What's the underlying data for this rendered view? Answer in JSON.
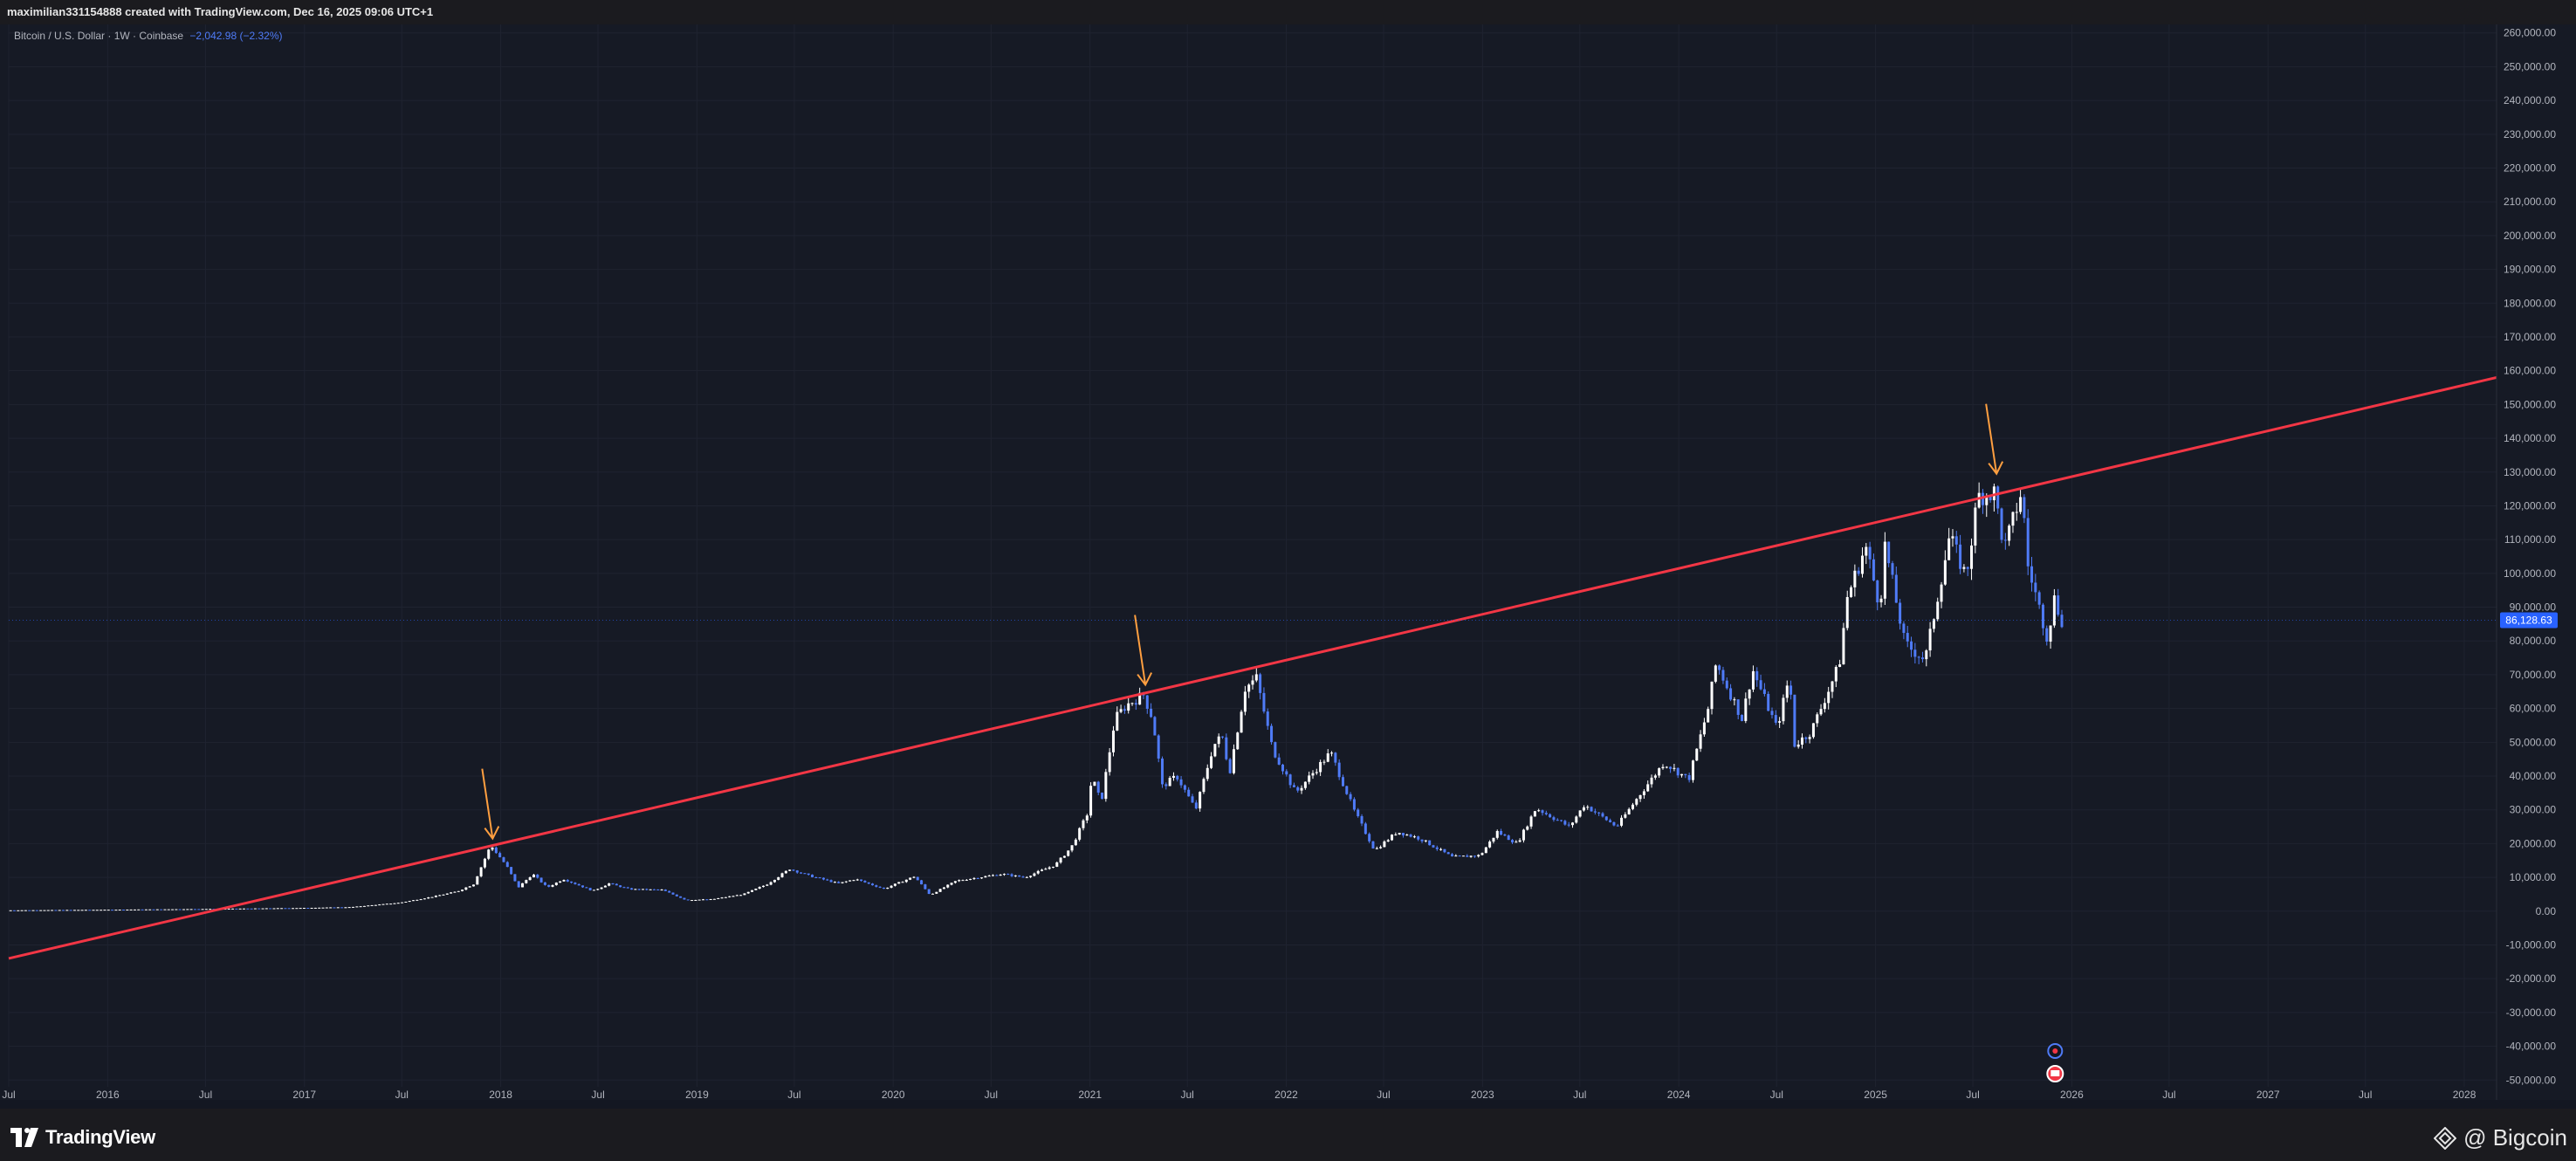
{
  "header": {
    "text": "maximilian331154888 created with TradingView.com, Dec 16, 2025 09:06 UTC+1"
  },
  "legend": {
    "symbol": "Bitcoin / U.S. Dollar · 1W · Coinbase",
    "change": "−2,042.98 (−2.32%)"
  },
  "footer": {
    "brand": "TradingView",
    "watermark": "@ Bigcoin"
  },
  "colors": {
    "background": "#161a25",
    "candle_up": "#ffffff",
    "candle_down": "#4f7bf7",
    "trendline": "#f23645",
    "arrows": "#ff9f40",
    "price_tag": "#2962ff"
  },
  "chart_data": {
    "type": "candlestick",
    "title": "Bitcoin / U.S. Dollar · 1W · Coinbase",
    "last_price": "86,128.63",
    "yaxis": {
      "range": [
        -52000,
        262000
      ],
      "ticks": [
        "260,000.00",
        "250,000.00",
        "240,000.00",
        "230,000.00",
        "220,000.00",
        "210,000.00",
        "200,000.00",
        "190,000.00",
        "180,000.00",
        "170,000.00",
        "160,000.00",
        "150,000.00",
        "140,000.00",
        "130,000.00",
        "120,000.00",
        "110,000.00",
        "100,000.00",
        "90,000.00",
        "80,000.00",
        "70,000.00",
        "60,000.00",
        "50,000.00",
        "40,000.00",
        "30,000.00",
        "20,000.00",
        "10,000.00",
        "0.00",
        "-10,000.00",
        "-20,000.00",
        "-30,000.00",
        "-40,000.00",
        "-50,000.00"
      ]
    },
    "xaxis": {
      "range": [
        "2015-07-01",
        "2028-03-01"
      ],
      "ticks": [
        {
          "label": "Jul",
          "date": "2015-07-01"
        },
        {
          "label": "2016",
          "date": "2016-01-01"
        },
        {
          "label": "Jul",
          "date": "2016-07-01"
        },
        {
          "label": "2017",
          "date": "2017-01-01"
        },
        {
          "label": "Jul",
          "date": "2017-07-01"
        },
        {
          "label": "2018",
          "date": "2018-01-01"
        },
        {
          "label": "Jul",
          "date": "2018-07-01"
        },
        {
          "label": "2019",
          "date": "2019-01-01"
        },
        {
          "label": "Jul",
          "date": "2019-07-01"
        },
        {
          "label": "2020",
          "date": "2020-01-01"
        },
        {
          "label": "Jul",
          "date": "2020-07-01"
        },
        {
          "label": "2021",
          "date": "2021-01-01"
        },
        {
          "label": "Jul",
          "date": "2021-07-01"
        },
        {
          "label": "2022",
          "date": "2022-01-01"
        },
        {
          "label": "Jul",
          "date": "2022-07-01"
        },
        {
          "label": "2023",
          "date": "2023-01-01"
        },
        {
          "label": "Jul",
          "date": "2023-07-01"
        },
        {
          "label": "2024",
          "date": "2024-01-01"
        },
        {
          "label": "Jul",
          "date": "2024-07-01"
        },
        {
          "label": "2025",
          "date": "2025-01-01"
        },
        {
          "label": "Jul",
          "date": "2025-07-01"
        },
        {
          "label": "2026",
          "date": "2026-01-01"
        },
        {
          "label": "Jul",
          "date": "2026-07-01"
        },
        {
          "label": "2027",
          "date": "2027-01-01"
        },
        {
          "label": "Jul",
          "date": "2027-07-01"
        },
        {
          "label": "2028",
          "date": "2028-01-01"
        }
      ]
    },
    "price_path": [
      [
        "2015-07-01",
        250
      ],
      [
        "2016-01-01",
        420
      ],
      [
        "2016-07-01",
        650
      ],
      [
        "2017-01-01",
        950
      ],
      [
        "2017-04-01",
        1200
      ],
      [
        "2017-07-01",
        2500
      ],
      [
        "2017-09-01",
        4300
      ],
      [
        "2017-10-15",
        5800
      ],
      [
        "2017-11-15",
        8000
      ],
      [
        "2017-12-17",
        19500
      ],
      [
        "2018-01-15",
        13500
      ],
      [
        "2018-02-06",
        7000
      ],
      [
        "2018-03-05",
        11000
      ],
      [
        "2018-04-01",
        7000
      ],
      [
        "2018-05-01",
        9500
      ],
      [
        "2018-06-25",
        6000
      ],
      [
        "2018-07-25",
        8200
      ],
      [
        "2018-09-01",
        6500
      ],
      [
        "2018-11-01",
        6300
      ],
      [
        "2018-12-15",
        3300
      ],
      [
        "2019-02-01",
        3500
      ],
      [
        "2019-04-01",
        5000
      ],
      [
        "2019-05-15",
        8000
      ],
      [
        "2019-06-26",
        12500
      ],
      [
        "2019-08-01",
        10500
      ],
      [
        "2019-09-25",
        8200
      ],
      [
        "2019-10-26",
        9500
      ],
      [
        "2019-12-18",
        6600
      ],
      [
        "2020-02-13",
        10300
      ],
      [
        "2020-03-13",
        4800
      ],
      [
        "2020-05-01",
        9000
      ],
      [
        "2020-07-25",
        11000
      ],
      [
        "2020-09-05",
        10000
      ],
      [
        "2020-11-01",
        13700
      ],
      [
        "2020-12-01",
        19000
      ],
      [
        "2020-12-31",
        29000
      ],
      [
        "2021-01-08",
        40000
      ],
      [
        "2021-01-25",
        32000
      ],
      [
        "2021-02-20",
        57000
      ],
      [
        "2021-03-13",
        61000
      ],
      [
        "2021-04-14",
        64000
      ],
      [
        "2021-05-01",
        57000
      ],
      [
        "2021-05-19",
        37000
      ],
      [
        "2021-06-15",
        40000
      ],
      [
        "2021-07-20",
        30000
      ],
      [
        "2021-08-22",
        49000
      ],
      [
        "2021-09-07",
        52000
      ],
      [
        "2021-09-21",
        41000
      ],
      [
        "2021-10-20",
        66000
      ],
      [
        "2021-11-10",
        69000
      ],
      [
        "2021-12-10",
        48000
      ],
      [
        "2022-01-22",
        35000
      ],
      [
        "2022-03-28",
        47000
      ],
      [
        "2022-05-10",
        30000
      ],
      [
        "2022-06-18",
        18000
      ],
      [
        "2022-07-30",
        23500
      ],
      [
        "2022-09-10",
        21500
      ],
      [
        "2022-11-09",
        16000
      ],
      [
        "2022-12-31",
        16500
      ],
      [
        "2023-02-01",
        23500
      ],
      [
        "2023-03-10",
        20000
      ],
      [
        "2023-04-14",
        30500
      ],
      [
        "2023-06-15",
        25000
      ],
      [
        "2023-07-13",
        31500
      ],
      [
        "2023-09-11",
        25000
      ],
      [
        "2023-10-24",
        34500
      ],
      [
        "2023-12-08",
        44000
      ],
      [
        "2024-01-23",
        39000
      ],
      [
        "2024-02-28",
        60000
      ],
      [
        "2024-03-14",
        73500
      ],
      [
        "2024-05-01",
        57000
      ],
      [
        "2024-05-21",
        71500
      ],
      [
        "2024-07-05",
        54000
      ],
      [
        "2024-07-29",
        70000
      ],
      [
        "2024-08-05",
        49000
      ],
      [
        "2024-09-06",
        53000
      ],
      [
        "2024-10-29",
        73000
      ],
      [
        "2024-11-13",
        93000
      ],
      [
        "2024-12-17",
        108000
      ],
      [
        "2025-01-13",
        90000
      ],
      [
        "2025-01-21",
        109000
      ],
      [
        "2025-02-28",
        79000
      ],
      [
        "2025-04-07",
        74500
      ],
      [
        "2025-05-22",
        111000
      ],
      [
        "2025-06-22",
        99000
      ],
      [
        "2025-07-14",
        123000
      ],
      [
        "2025-08-14",
        124000
      ],
      [
        "2025-09-01",
        107000
      ],
      [
        "2025-10-06",
        126000
      ],
      [
        "2025-10-10",
        105000
      ],
      [
        "2025-11-21",
        80500
      ],
      [
        "2025-12-02",
        93000
      ],
      [
        "2025-12-16",
        86128
      ]
    ],
    "trendline": {
      "start": [
        "2015-07-01",
        -14000
      ],
      "end": [
        "2028-03-01",
        158000
      ],
      "color": "#f23645"
    },
    "arrows": [
      {
        "date": "2017-12-17",
        "tip_value": 21500
      },
      {
        "date": "2021-04-14",
        "tip_value": 67000
      },
      {
        "date": "2025-08-14",
        "tip_value": 129500
      }
    ]
  }
}
